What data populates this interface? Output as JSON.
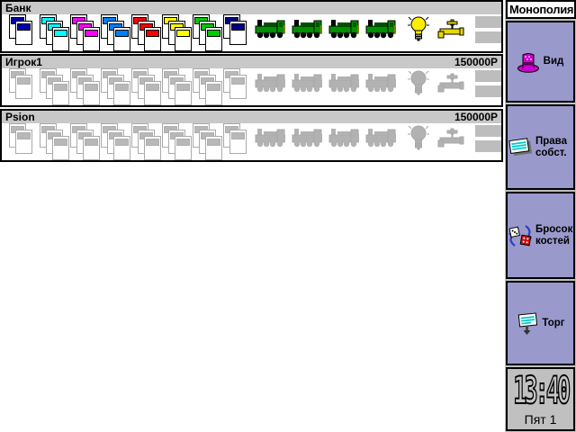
{
  "panels": [
    {
      "name": "Банк",
      "money": "",
      "colored": true
    },
    {
      "name": "Игрок1",
      "money": "150000Р",
      "colored": false
    },
    {
      "name": "Psion",
      "money": "150000Р",
      "colored": false
    }
  ],
  "property_groups": [
    {
      "cards": 2,
      "color": "#0000a8",
      "name": "purple-group"
    },
    {
      "cards": 3,
      "color": "#00ffff",
      "name": "light-blue-group"
    },
    {
      "cards": 3,
      "color": "#ff00ff",
      "name": "pink-group"
    },
    {
      "cards": 3,
      "color": "#0080ff",
      "name": "orange-group"
    },
    {
      "cards": 3,
      "color": "#ff0000",
      "name": "red-group"
    },
    {
      "cards": 3,
      "color": "#ffff00",
      "name": "yellow-group"
    },
    {
      "cards": 3,
      "color": "#00cc00",
      "name": "green-group"
    },
    {
      "cards": 2,
      "color": "#000080",
      "name": "dark-blue-group"
    }
  ],
  "utilities": {
    "railroads": 4,
    "electric_icon": "lightbulb-icon",
    "water_icon": "tap-icon",
    "money_stacks": 2
  },
  "sidebar": {
    "title": "Монополия",
    "buttons": [
      {
        "label": "Вид",
        "icon": "top-hat-icon"
      },
      {
        "label": "Права собст.",
        "icon": "deed-card-icon"
      },
      {
        "label": "Бросок костей",
        "icon": "dice-icon"
      },
      {
        "label": "Торг",
        "icon": "trade-sign-icon"
      }
    ],
    "clock": {
      "time": "13:40",
      "day": "Пят 1"
    }
  },
  "palette": {
    "button_bg": "#9999cc",
    "panel_header": "#c8c8c8",
    "sidebar_bg": "#c0c0c0",
    "disabled_gray": "#b2b2b2"
  }
}
